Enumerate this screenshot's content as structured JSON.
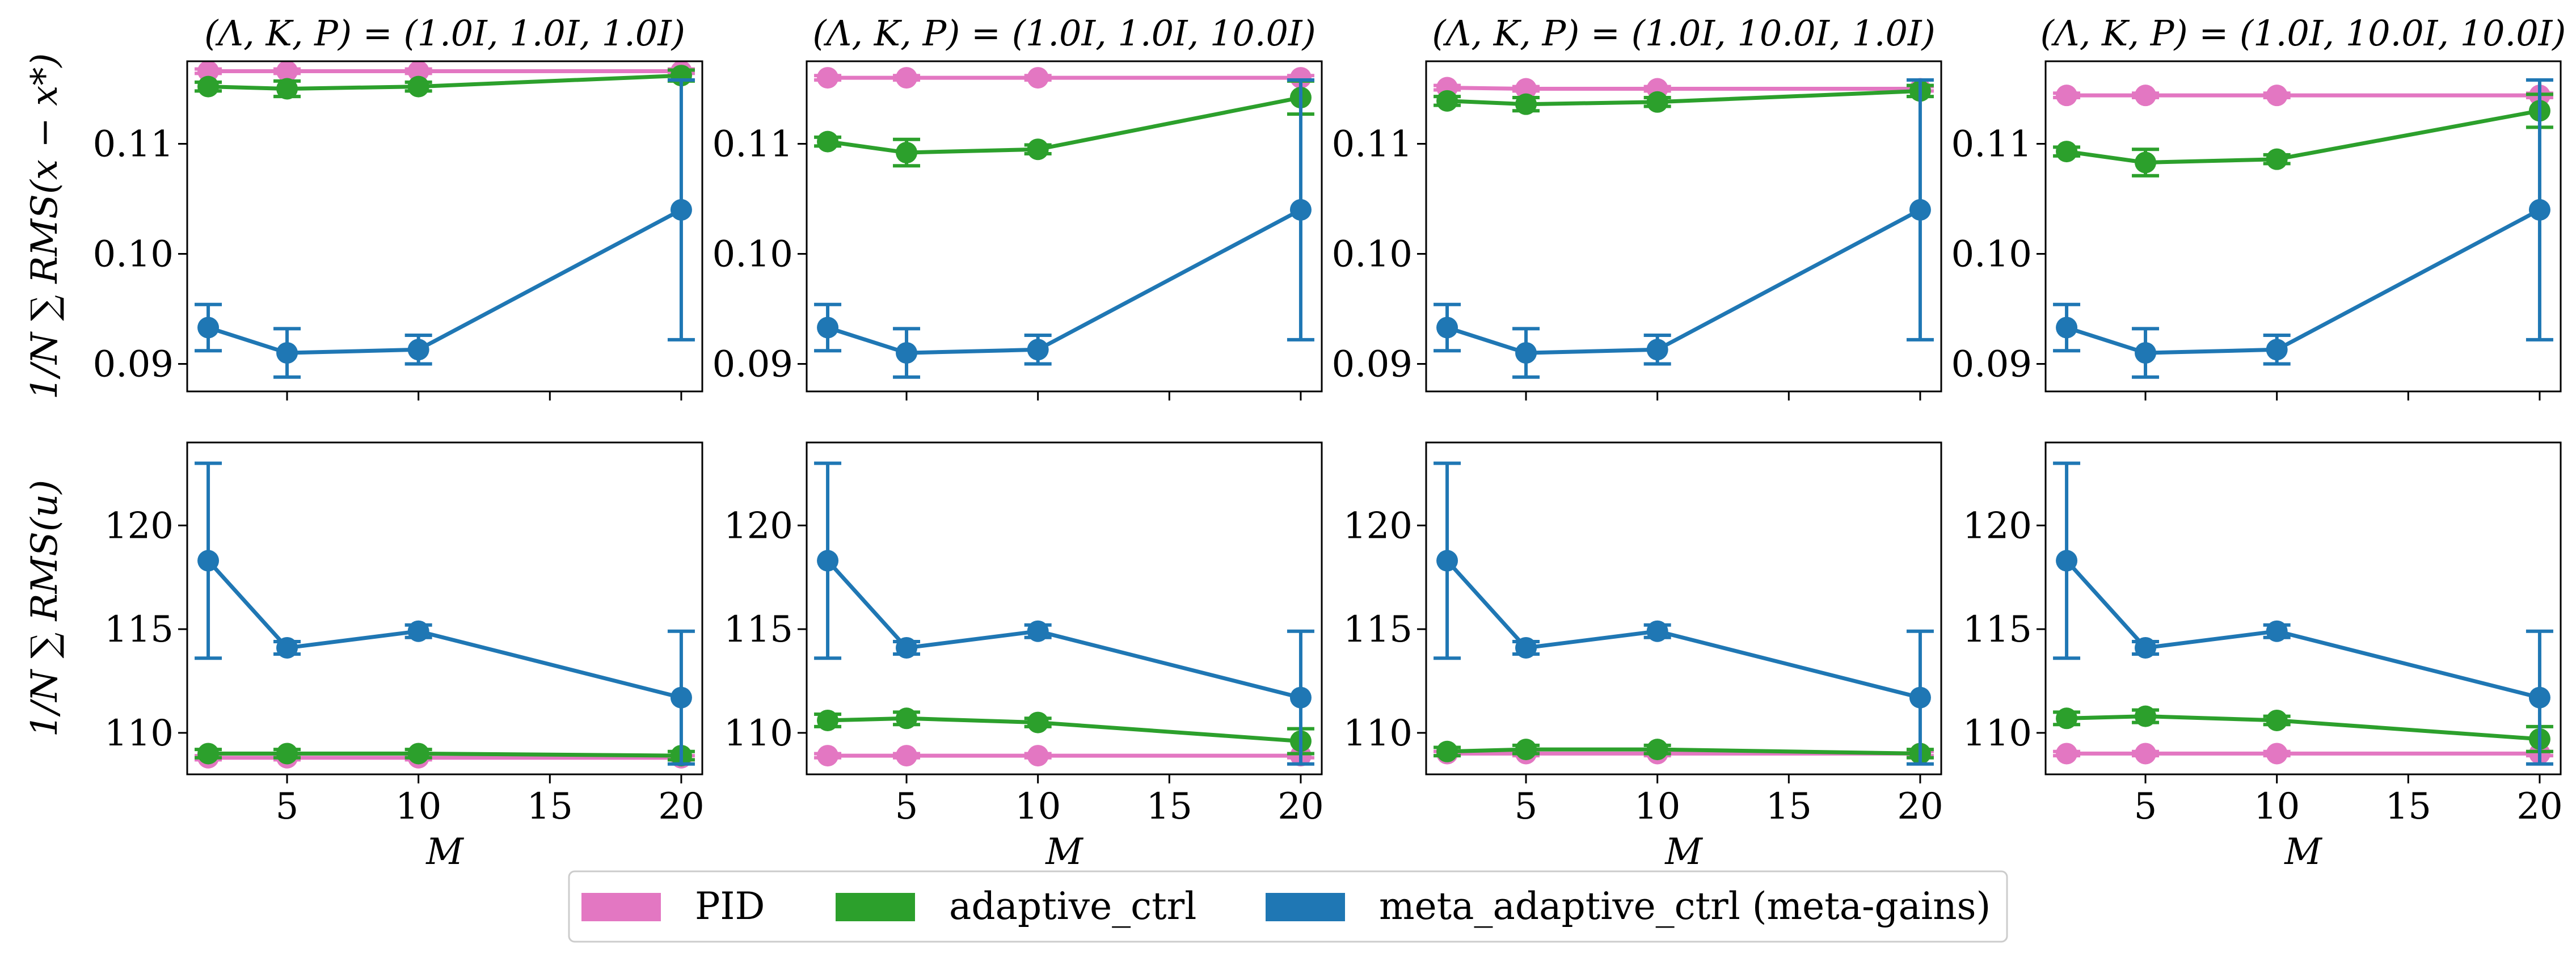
{
  "figure": {
    "x_ticks": [
      5,
      10,
      15,
      20
    ],
    "x_domain": [
      1.2,
      20.8
    ],
    "colors": {
      "PID": "#e377c2",
      "adaptive_ctrl": "#2ca02c",
      "meta_adaptive_ctrl": "#1f77b4"
    }
  },
  "legend": {
    "items": [
      {
        "key": "PID",
        "label": "PID",
        "color": "#e377c2"
      },
      {
        "key": "adaptive_ctrl",
        "label": "adaptive_ctrl",
        "color": "#2ca02c"
      },
      {
        "key": "meta_adaptive_ctrl",
        "label": "meta_adaptive_ctrl (meta-gains)",
        "color": "#1f77b4"
      }
    ]
  },
  "chart_data": [
    {
      "type": "line",
      "row": 0,
      "col": 0,
      "title": "(Λ, K, P) = (1.0I, 1.0I, 1.0I)",
      "xlabel": "",
      "ylabel": "1/N ∑ RMS(x − x*)",
      "x": [
        2,
        5,
        10,
        20
      ],
      "ylim": [
        0.0875,
        0.1175
      ],
      "yticks": [
        "0.09",
        "0.10",
        "0.11"
      ],
      "series": [
        {
          "name": "PID",
          "values": [
            0.1166,
            0.1166,
            0.1166,
            0.1166
          ],
          "err": [
            0.0002,
            0.0002,
            0.0002,
            0.0002
          ]
        },
        {
          "name": "adaptive_ctrl",
          "values": [
            0.1152,
            0.115,
            0.1152,
            0.1162
          ],
          "err": [
            0.0004,
            0.0007,
            0.0004,
            0.0005
          ]
        },
        {
          "name": "meta_adaptive_ctrl (meta-gains)",
          "values": [
            0.0933,
            0.091,
            0.0913,
            0.104
          ],
          "err": [
            0.0021,
            0.0022,
            0.0013,
            0.0118
          ]
        }
      ]
    },
    {
      "type": "line",
      "row": 0,
      "col": 1,
      "title": "(Λ, K, P) = (1.0I, 1.0I, 10.0I)",
      "xlabel": "",
      "ylabel": "",
      "x": [
        2,
        5,
        10,
        20
      ],
      "ylim": [
        0.0875,
        0.1175
      ],
      "yticks": [
        "0.09",
        "0.10",
        "0.11"
      ],
      "series": [
        {
          "name": "PID",
          "values": [
            0.116,
            0.116,
            0.116,
            0.116
          ],
          "err": [
            0.0002,
            0.0002,
            0.0002,
            0.0002
          ]
        },
        {
          "name": "adaptive_ctrl",
          "values": [
            0.1102,
            0.1092,
            0.1095,
            0.1142
          ],
          "err": [
            0.0004,
            0.0012,
            0.0004,
            0.0015
          ]
        },
        {
          "name": "meta_adaptive_ctrl (meta-gains)",
          "values": [
            0.0933,
            0.091,
            0.0913,
            0.104
          ],
          "err": [
            0.0021,
            0.0022,
            0.0013,
            0.0118
          ]
        }
      ]
    },
    {
      "type": "line",
      "row": 0,
      "col": 2,
      "title": "(Λ, K, P) = (1.0I, 10.0I, 1.0I)",
      "xlabel": "",
      "ylabel": "",
      "x": [
        2,
        5,
        10,
        20
      ],
      "ylim": [
        0.0875,
        0.1175
      ],
      "yticks": [
        "0.09",
        "0.10",
        "0.11"
      ],
      "series": [
        {
          "name": "PID",
          "values": [
            0.1151,
            0.115,
            0.115,
            0.115
          ],
          "err": [
            0.0002,
            0.0002,
            0.0002,
            0.0002
          ]
        },
        {
          "name": "adaptive_ctrl",
          "values": [
            0.1139,
            0.1136,
            0.1138,
            0.1148
          ],
          "err": [
            0.0004,
            0.0006,
            0.0004,
            0.0005
          ]
        },
        {
          "name": "meta_adaptive_ctrl (meta-gains)",
          "values": [
            0.0933,
            0.091,
            0.0913,
            0.104
          ],
          "err": [
            0.0021,
            0.0022,
            0.0013,
            0.0118
          ]
        }
      ]
    },
    {
      "type": "line",
      "row": 0,
      "col": 3,
      "title": "(Λ, K, P) = (1.0I, 10.0I, 10.0I)",
      "xlabel": "",
      "ylabel": "",
      "x": [
        2,
        5,
        10,
        20
      ],
      "ylim": [
        0.0875,
        0.1175
      ],
      "yticks": [
        "0.09",
        "0.10",
        "0.11"
      ],
      "series": [
        {
          "name": "PID",
          "values": [
            0.1144,
            0.1144,
            0.1144,
            0.1144
          ],
          "err": [
            0.0002,
            0.0002,
            0.0002,
            0.0002
          ]
        },
        {
          "name": "adaptive_ctrl",
          "values": [
            0.1093,
            0.1083,
            0.1086,
            0.113
          ],
          "err": [
            0.0004,
            0.0012,
            0.0004,
            0.0015
          ]
        },
        {
          "name": "meta_adaptive_ctrl (meta-gains)",
          "values": [
            0.0933,
            0.091,
            0.0913,
            0.104
          ],
          "err": [
            0.0021,
            0.0022,
            0.0013,
            0.0118
          ]
        }
      ]
    },
    {
      "type": "line",
      "row": 1,
      "col": 0,
      "title": "",
      "xlabel": "M",
      "ylabel": "1/N ∑ RMS(u)",
      "x": [
        2,
        5,
        10,
        20
      ],
      "ylim": [
        108.0,
        124.0
      ],
      "yticks": [
        "110",
        "115",
        "120"
      ],
      "series": [
        {
          "name": "PID",
          "values": [
            108.8,
            108.8,
            108.8,
            108.8
          ],
          "err": [
            0.1,
            0.1,
            0.1,
            0.1
          ]
        },
        {
          "name": "adaptive_ctrl",
          "values": [
            109.0,
            109.0,
            109.0,
            108.9
          ],
          "err": [
            0.2,
            0.2,
            0.2,
            0.2
          ]
        },
        {
          "name": "meta_adaptive_ctrl (meta-gains)",
          "values": [
            118.3,
            114.1,
            114.9,
            111.7
          ],
          "err": [
            4.7,
            0.3,
            0.3,
            3.2
          ]
        }
      ]
    },
    {
      "type": "line",
      "row": 1,
      "col": 1,
      "title": "",
      "xlabel": "M",
      "ylabel": "",
      "x": [
        2,
        5,
        10,
        20
      ],
      "ylim": [
        108.0,
        124.0
      ],
      "yticks": [
        "110",
        "115",
        "120"
      ],
      "series": [
        {
          "name": "PID",
          "values": [
            108.9,
            108.9,
            108.9,
            108.9
          ],
          "err": [
            0.1,
            0.1,
            0.1,
            0.1
          ]
        },
        {
          "name": "adaptive_ctrl",
          "values": [
            110.6,
            110.7,
            110.5,
            109.6
          ],
          "err": [
            0.3,
            0.3,
            0.2,
            0.6
          ]
        },
        {
          "name": "meta_adaptive_ctrl (meta-gains)",
          "values": [
            118.3,
            114.1,
            114.9,
            111.7
          ],
          "err": [
            4.7,
            0.3,
            0.3,
            3.2
          ]
        }
      ]
    },
    {
      "type": "line",
      "row": 1,
      "col": 2,
      "title": "",
      "xlabel": "M",
      "ylabel": "",
      "x": [
        2,
        5,
        10,
        20
      ],
      "ylim": [
        108.0,
        124.0
      ],
      "yticks": [
        "110",
        "115",
        "120"
      ],
      "series": [
        {
          "name": "PID",
          "values": [
            109.0,
            109.0,
            109.0,
            109.0
          ],
          "err": [
            0.1,
            0.1,
            0.1,
            0.1
          ]
        },
        {
          "name": "adaptive_ctrl",
          "values": [
            109.1,
            109.2,
            109.2,
            109.0
          ],
          "err": [
            0.2,
            0.2,
            0.2,
            0.2
          ]
        },
        {
          "name": "meta_adaptive_ctrl (meta-gains)",
          "values": [
            118.3,
            114.1,
            114.9,
            111.7
          ],
          "err": [
            4.7,
            0.3,
            0.3,
            3.2
          ]
        }
      ]
    },
    {
      "type": "line",
      "row": 1,
      "col": 3,
      "title": "",
      "xlabel": "M",
      "ylabel": "",
      "x": [
        2,
        5,
        10,
        20
      ],
      "ylim": [
        108.0,
        124.0
      ],
      "yticks": [
        "110",
        "115",
        "120"
      ],
      "series": [
        {
          "name": "PID",
          "values": [
            109.0,
            109.0,
            109.0,
            109.0
          ],
          "err": [
            0.1,
            0.1,
            0.1,
            0.1
          ]
        },
        {
          "name": "adaptive_ctrl",
          "values": [
            110.7,
            110.8,
            110.6,
            109.7
          ],
          "err": [
            0.3,
            0.3,
            0.2,
            0.6
          ]
        },
        {
          "name": "meta_adaptive_ctrl (meta-gains)",
          "values": [
            118.3,
            114.1,
            114.9,
            111.7
          ],
          "err": [
            4.7,
            0.3,
            0.3,
            3.2
          ]
        }
      ]
    }
  ]
}
